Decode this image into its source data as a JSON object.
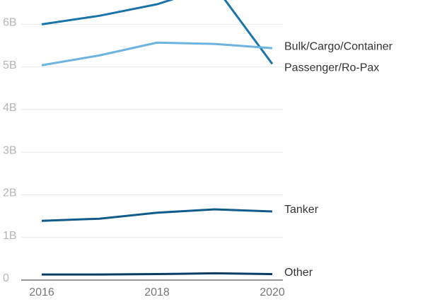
{
  "chart_data": {
    "type": "line",
    "x": [
      2016,
      2017,
      2018,
      2019,
      2020
    ],
    "series": [
      {
        "name": "Passenger/Ro-Pax",
        "color": "#1a74ab",
        "values": [
          6000000000,
          6200000000,
          6470000000,
          6900000000,
          5070000000
        ]
      },
      {
        "name": "Bulk/Cargo/Container",
        "color": "#6db3e0",
        "values": [
          5040000000,
          5270000000,
          5570000000,
          5540000000,
          5440000000
        ]
      },
      {
        "name": "Tanker",
        "color": "#0f5b8c",
        "values": [
          1390000000,
          1440000000,
          1580000000,
          1660000000,
          1610000000
        ]
      },
      {
        "name": "Other",
        "color": "#0b3c63",
        "values": [
          130000000,
          130000000,
          140000000,
          160000000,
          140000000
        ]
      }
    ],
    "xlim": [
      2016,
      2020
    ],
    "xticks": [
      2016,
      2018,
      2020
    ],
    "ylim": [
      0,
      6570000000
    ],
    "yticks": [
      0,
      {
        "value": 1000000000,
        "label": "1B"
      },
      {
        "value": 2000000000,
        "label": "2B"
      },
      {
        "value": 3000000000,
        "label": "3B"
      },
      {
        "value": 4000000000,
        "label": "4B"
      },
      {
        "value": 5000000000,
        "label": "5B"
      },
      {
        "value": 6000000000,
        "label": "6B"
      }
    ],
    "grid": true
  }
}
